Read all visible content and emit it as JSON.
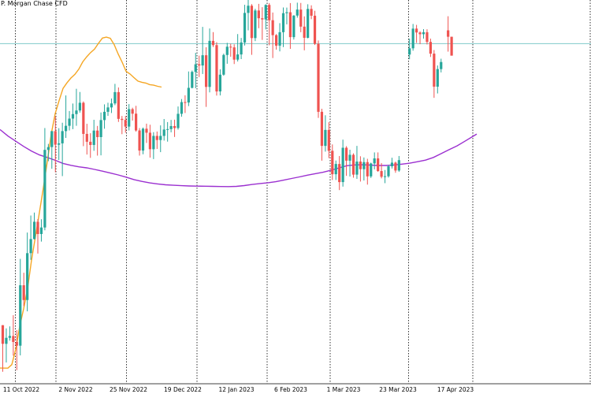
{
  "chart_data": {
    "type": "candlestick",
    "title": "P. Morgan Chase CFD",
    "x_tick_labels": [
      "11 Oct 2022",
      "2 Nov 2022",
      "25 Nov 2022",
      "19 Dec 2022",
      "12 Jan 2023",
      "6 Feb 2023",
      "1 Mar 2023",
      "23 Mar 2023",
      "17 Apr 2023"
    ],
    "grid": "vertical dotted at each date tick",
    "colors": {
      "up_candle": "#26a69a",
      "down_candle": "#ef5350",
      "ma_fast": "#f5a623",
      "ma_slow": "#9b30d0",
      "current_price_line": "#7fc9c9",
      "grid": "#000000"
    },
    "candles": [
      [
        116.15,
        116.15,
        112.65,
        114.75
      ],
      [
        114.75,
        115.91,
        113.35,
        115.2
      ],
      [
        115.2,
        116.06,
        114.99,
        115.34
      ],
      [
        115.34,
        116.9,
        113.86,
        114.89
      ],
      [
        114.89,
        115.78,
        112.77,
        114.61
      ],
      [
        114.61,
        121.13,
        113.88,
        119.15
      ],
      [
        119.15,
        120.09,
        117.58,
        118.04
      ],
      [
        118.04,
        123.11,
        117.19,
        121.56
      ],
      [
        121.56,
        124.39,
        121.06,
        122.62
      ],
      [
        122.62,
        124.61,
        122.59,
        123.92
      ],
      [
        123.92,
        124.12,
        121.53,
        123.0
      ],
      [
        123.0,
        124.11,
        122.43,
        123.49
      ],
      [
        123.49,
        130.96,
        123.28,
        129.32
      ],
      [
        129.32,
        129.77,
        128.47,
        129.53
      ],
      [
        129.53,
        130.73,
        127.9,
        130.73
      ],
      [
        130.73,
        131.84,
        127.64,
        129.71
      ],
      [
        129.71,
        130.95,
        128.56,
        129.81
      ],
      [
        129.81,
        131.36,
        127.35,
        130.73
      ],
      [
        130.73,
        133.41,
        130.22,
        131.13
      ],
      [
        131.13,
        132.24,
        130.78,
        131.67
      ],
      [
        131.67,
        132.8,
        130.88,
        132.01
      ],
      [
        132.01,
        133.91,
        131.13,
        132.28
      ],
      [
        132.28,
        133.67,
        132.12,
        132.86
      ],
      [
        132.86,
        132.96,
        129.6,
        130.52
      ],
      [
        130.52,
        131.28,
        128.97,
        129.93
      ],
      [
        129.93,
        130.57,
        128.72,
        129.69
      ],
      [
        129.69,
        131.58,
        129.25,
        130.77
      ],
      [
        130.77,
        131.12,
        128.89,
        130.28
      ],
      [
        130.28,
        132.13,
        128.91,
        131.56
      ],
      [
        131.56,
        132.74,
        130.91,
        132.18
      ],
      [
        132.18,
        132.86,
        131.88,
        132.51
      ],
      [
        132.51,
        133.18,
        132.09,
        132.81
      ],
      [
        132.81,
        134.28,
        132.68,
        133.66
      ],
      [
        133.66,
        134.01,
        131.42,
        131.65
      ],
      [
        131.65,
        131.87,
        130.5,
        131.57
      ],
      [
        131.57,
        131.87,
        130.61,
        131.07
      ],
      [
        131.07,
        132.76,
        130.78,
        132.38
      ],
      [
        132.38,
        132.49,
        131.52,
        132.04
      ],
      [
        132.04,
        132.63,
        130.69,
        130.78
      ],
      [
        130.78,
        130.96,
        128.89,
        129.27
      ],
      [
        129.27,
        131.0,
        128.99,
        130.91
      ],
      [
        130.91,
        131.29,
        129.84,
        130.61
      ],
      [
        130.61,
        131.21,
        128.74,
        129.37
      ],
      [
        129.37,
        130.65,
        128.63,
        130.37
      ],
      [
        130.37,
        130.7,
        129.39,
        130.06
      ],
      [
        130.06,
        131.16,
        129.15,
        130.37
      ],
      [
        130.37,
        131.64,
        130.02,
        130.85
      ],
      [
        130.85,
        131.41,
        129.94,
        130.88
      ],
      [
        130.88,
        131.57,
        130.64,
        131.11
      ],
      [
        131.11,
        131.59,
        130.29,
        130.96
      ],
      [
        130.96,
        132.58,
        130.84,
        132.03
      ],
      [
        132.03,
        133.14,
        131.81,
        132.91
      ],
      [
        132.91,
        133.42,
        132.09,
        132.88
      ],
      [
        132.88,
        135.21,
        132.61,
        133.98
      ],
      [
        133.98,
        135.28,
        133.94,
        135.18
      ],
      [
        135.18,
        136.61,
        133.95,
        135.75
      ],
      [
        135.75,
        136.4,
        134.79,
        135.66
      ],
      [
        135.66,
        138.56,
        135.02,
        136.43
      ],
      [
        136.43,
        137.03,
        132.55,
        134.05
      ],
      [
        134.05,
        138.44,
        133.64,
        137.51
      ],
      [
        137.51,
        138.17,
        137.05,
        137.19
      ],
      [
        137.19,
        137.41,
        133.4,
        133.71
      ],
      [
        133.71,
        135.37,
        133.41,
        134.97
      ],
      [
        134.97,
        136.55,
        134.89,
        136.45
      ],
      [
        136.45,
        137.36,
        135.79,
        137.07
      ],
      [
        137.07,
        137.29,
        136.32,
        137.02
      ],
      [
        137.02,
        137.25,
        135.77,
        136.1
      ],
      [
        136.1,
        138.02,
        135.96,
        136.49
      ],
      [
        136.49,
        137.73,
        136.14,
        137.39
      ],
      [
        137.39,
        140.22,
        137.16,
        139.61
      ],
      [
        139.61,
        140.67,
        138.3,
        140.15
      ],
      [
        140.15,
        140.27,
        136.46,
        137.72
      ],
      [
        137.72,
        139.92,
        137.49,
        139.79
      ],
      [
        139.79,
        140.29,
        138.46,
        139.21
      ],
      [
        139.21,
        140.04,
        137.58,
        139.12
      ],
      [
        139.12,
        140.26,
        138.37,
        140.21
      ],
      [
        140.21,
        140.35,
        137.18,
        139.06
      ],
      [
        139.06,
        139.64,
        136.22,
        137.94
      ],
      [
        137.94,
        138.02,
        136.85,
        137.15
      ],
      [
        137.15,
        138.84,
        136.72,
        138.16
      ],
      [
        138.16,
        140.02,
        137.04,
        139.59
      ],
      [
        139.59,
        140.01,
        138.75,
        139.66
      ],
      [
        139.66,
        140.35,
        136.91,
        137.79
      ],
      [
        137.79,
        139.44,
        137.61,
        139.41
      ],
      [
        139.41,
        140.38,
        139.25,
        139.86
      ],
      [
        139.86,
        140.36,
        138.16,
        138.58
      ],
      [
        138.58,
        139.35,
        136.8,
        137.74
      ],
      [
        137.74,
        140.26,
        137.7,
        139.91
      ],
      [
        139.91,
        140.18,
        139.14,
        139.4
      ],
      [
        139.4,
        139.77,
        137.2,
        137.29
      ],
      [
        137.29,
        137.54,
        131.72,
        132.18
      ],
      [
        132.18,
        132.41,
        128.51,
        129.62
      ],
      [
        129.62,
        131.92,
        129.19,
        130.82
      ],
      [
        130.82,
        131.4,
        128.7,
        129.25
      ],
      [
        129.25,
        129.73,
        127.06,
        127.49
      ],
      [
        127.49,
        128.52,
        127.06,
        128.26
      ],
      [
        128.26,
        128.86,
        126.3,
        126.9
      ],
      [
        126.9,
        130.09,
        126.56,
        129.48
      ],
      [
        129.48,
        129.6,
        127.37,
        128.51
      ],
      [
        128.51,
        129.33,
        127.32,
        128.95
      ],
      [
        128.95,
        129.06,
        127.23,
        127.46
      ],
      [
        127.46,
        129.62,
        127.14,
        128.44
      ],
      [
        128.44,
        128.84,
        126.94,
        127.87
      ],
      [
        127.87,
        128.75,
        127.02,
        128.4
      ],
      [
        128.4,
        128.65,
        126.71,
        127.33
      ],
      [
        127.33,
        128.36,
        127.21,
        128.3
      ],
      [
        128.3,
        129.13,
        127.86,
        128.68
      ],
      [
        128.68,
        129.13,
        127.67,
        127.73
      ],
      [
        127.73,
        128.33,
        127.18,
        127.3
      ],
      [
        127.3,
        127.81,
        126.82,
        127.34
      ],
      [
        127.34,
        128.2,
        127.24,
        128.09
      ],
      [
        128.09,
        128.73,
        127.92,
        128.36
      ],
      [
        128.36,
        128.44,
        127.6,
        127.77
      ],
      [
        127.77,
        128.86,
        127.67,
        128.55
      ],
      [
        null,
        null,
        null,
        null
      ],
      [
        null,
        null,
        null,
        null
      ],
      [
        136.48,
        137.68,
        136.13,
        136.95
      ],
      [
        136.95,
        138.78,
        136.77,
        138.43
      ],
      [
        138.43,
        138.71,
        137.36,
        138.14
      ],
      [
        138.14,
        138.23,
        137.26,
        138.01
      ],
      [
        138.01,
        138.39,
        137.68,
        138.16
      ],
      [
        138.16,
        138.38,
        137.24,
        137.43
      ],
      [
        137.43,
        137.68,
        136.3,
        136.55
      ],
      [
        136.55,
        136.82,
        133.23,
        134.07
      ],
      [
        134.07,
        135.66,
        133.56,
        135.39
      ],
      [
        135.39,
        136.17,
        135.14,
        135.92
      ],
      [
        null,
        null,
        null,
        null
      ],
      [
        138.3,
        139.36,
        136.7,
        137.82
      ],
      [
        137.82,
        137.82,
        136.4,
        136.4
      ]
    ],
    "ma_fast": [
      [
        0,
        112.93
      ],
      [
        10,
        112.92
      ],
      [
        15,
        113.19
      ],
      [
        20,
        114.35
      ],
      [
        25,
        116.06
      ],
      [
        30,
        117.38
      ],
      [
        35,
        118.91
      ],
      [
        40,
        121.03
      ],
      [
        45,
        122.82
      ],
      [
        50,
        124.61
      ],
      [
        55,
        126.46
      ],
      [
        60,
        128.43
      ],
      [
        65,
        130.5
      ],
      [
        70,
        132.04
      ],
      [
        75,
        133.02
      ],
      [
        80,
        133.94
      ],
      [
        85,
        134.36
      ],
      [
        90,
        134.72
      ],
      [
        95,
        134.99
      ],
      [
        100,
        135.38
      ],
      [
        105,
        135.93
      ],
      [
        110,
        136.31
      ],
      [
        115,
        136.63
      ],
      [
        120,
        136.89
      ],
      [
        125,
        137.33
      ],
      [
        130,
        137.72
      ],
      [
        135,
        137.79
      ],
      [
        140,
        137.7
      ],
      [
        145,
        137.22
      ],
      [
        150,
        136.52
      ],
      [
        155,
        135.91
      ],
      [
        160,
        135.22
      ],
      [
        165,
        135.02
      ],
      [
        170,
        134.75
      ],
      [
        175,
        134.49
      ],
      [
        180,
        134.4
      ],
      [
        185,
        134.34
      ],
      [
        190,
        134.22
      ],
      [
        195,
        134.18
      ],
      [
        200,
        134.1
      ],
      [
        205,
        134.04
      ]
    ],
    "ma_slow": [
      [
        0,
        130.85
      ],
      [
        10,
        130.36
      ],
      [
        20,
        129.97
      ],
      [
        30,
        129.58
      ],
      [
        40,
        129.23
      ],
      [
        50,
        128.94
      ],
      [
        60,
        128.75
      ],
      [
        70,
        128.54
      ],
      [
        80,
        128.3
      ],
      [
        90,
        128.16
      ],
      [
        100,
        128.05
      ],
      [
        110,
        127.97
      ],
      [
        120,
        127.85
      ],
      [
        130,
        127.72
      ],
      [
        140,
        127.58
      ],
      [
        150,
        127.44
      ],
      [
        160,
        127.27
      ],
      [
        170,
        127.09
      ],
      [
        180,
        126.95
      ],
      [
        190,
        126.84
      ],
      [
        200,
        126.76
      ],
      [
        210,
        126.7
      ],
      [
        220,
        126.66
      ],
      [
        230,
        126.63
      ],
      [
        240,
        126.61
      ],
      [
        250,
        126.6
      ],
      [
        260,
        126.59
      ],
      [
        270,
        126.58
      ],
      [
        280,
        126.57
      ],
      [
        290,
        126.56
      ],
      [
        300,
        126.58
      ],
      [
        310,
        126.64
      ],
      [
        320,
        126.72
      ],
      [
        330,
        126.79
      ],
      [
        340,
        126.85
      ],
      [
        350,
        126.93
      ],
      [
        360,
        127.05
      ],
      [
        370,
        127.17
      ],
      [
        380,
        127.29
      ],
      [
        390,
        127.42
      ],
      [
        400,
        127.53
      ],
      [
        410,
        127.64
      ],
      [
        420,
        127.79
      ],
      [
        430,
        127.96
      ],
      [
        440,
        128.13
      ],
      [
        450,
        128.19
      ],
      [
        460,
        128.2
      ],
      [
        470,
        128.18
      ],
      [
        480,
        128.15
      ],
      [
        490,
        128.15
      ],
      [
        500,
        128.19
      ],
      [
        510,
        128.25
      ],
      [
        520,
        128.32
      ],
      [
        530,
        128.43
      ],
      [
        540,
        128.55
      ],
      [
        550,
        128.75
      ],
      [
        560,
        129.04
      ],
      [
        570,
        129.34
      ],
      [
        580,
        129.62
      ],
      [
        590,
        129.97
      ],
      [
        600,
        130.33
      ],
      [
        605,
        130.51
      ]
    ],
    "current_price": 137.3,
    "y_range_visible": [
      111.75,
      140.58
    ]
  }
}
